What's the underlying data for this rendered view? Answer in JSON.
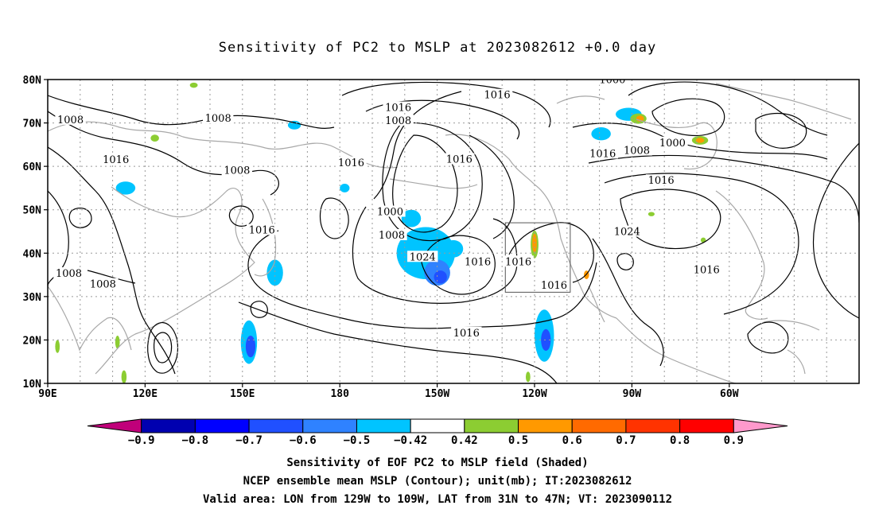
{
  "title": "Sensitivity of PC2 to MSLP at 2023082612 +0.0 day",
  "map": {
    "lat_labels": [
      "80N",
      "70N",
      "60N",
      "50N",
      "40N",
      "30N",
      "20N",
      "10N"
    ],
    "lon_labels": [
      "90E",
      "120E",
      "150E",
      "180",
      "150W",
      "120W",
      "90W",
      "60W"
    ],
    "valid_area_box": {
      "lon": [
        "129W",
        "109W"
      ],
      "lat": [
        "31N",
        "47N"
      ]
    },
    "contour_labels": [
      {
        "text": "1016",
        "lon": -131.5,
        "lat": 76.2
      },
      {
        "text": "1000",
        "lon": -96,
        "lat": 79.7
      },
      {
        "text": "1016",
        "lon": -162,
        "lat": 73.3
      },
      {
        "text": "1008",
        "lon": -162,
        "lat": 70.3
      },
      {
        "text": "1008",
        "lon": 97,
        "lat": 70.5
      },
      {
        "text": "1008",
        "lon": 142.5,
        "lat": 70.8
      },
      {
        "text": "1016",
        "lon": -99,
        "lat": 62.7
      },
      {
        "text": "1016",
        "lon": 111,
        "lat": 61.3
      },
      {
        "text": "1016",
        "lon": -143.2,
        "lat": 61.4
      },
      {
        "text": "1016",
        "lon": -176.5,
        "lat": 60.6
      },
      {
        "text": "1008",
        "lon": 148.3,
        "lat": 58.8
      },
      {
        "text": "1008",
        "lon": -88.5,
        "lat": 63.4
      },
      {
        "text": "1000",
        "lon": -77.5,
        "lat": 65.2
      },
      {
        "text": "1016",
        "lon": -81,
        "lat": 56.5
      },
      {
        "text": "1000",
        "lon": -164.5,
        "lat": 49.3
      },
      {
        "text": "1008",
        "lon": -164,
        "lat": 43.9
      },
      {
        "text": "1016",
        "lon": 156,
        "lat": 45.1
      },
      {
        "text": "1024",
        "lon": -91.5,
        "lat": 44.7
      },
      {
        "text": "1024",
        "lon": -154.5,
        "lat": 38.9
      },
      {
        "text": "1016",
        "lon": -137.5,
        "lat": 37.8
      },
      {
        "text": "1016",
        "lon": -125,
        "lat": 37.8
      },
      {
        "text": "1016",
        "lon": -114,
        "lat": 32.4
      },
      {
        "text": "1016",
        "lon": -67,
        "lat": 35.9
      },
      {
        "text": "1008",
        "lon": 96.5,
        "lat": 35.1
      },
      {
        "text": "1008",
        "lon": 107,
        "lat": 32.6
      },
      {
        "text": "1016",
        "lon": -141,
        "lat": 21.4
      }
    ],
    "shaded_regions": [
      {
        "value": -0.5,
        "lon": -153.5,
        "lat": 40,
        "rx": 9,
        "ry": 6
      },
      {
        "value": -0.6,
        "lon": -150,
        "lat": 35.5,
        "rx": 4,
        "ry": 3
      },
      {
        "value": -0.7,
        "lon": -149,
        "lat": 34.5,
        "rx": 2,
        "ry": 1.5
      },
      {
        "value": -0.5,
        "lon": -145,
        "lat": 41,
        "rx": 3,
        "ry": 2
      },
      {
        "value": -0.5,
        "lon": -158,
        "lat": 48,
        "rx": 3,
        "ry": 2
      },
      {
        "value": -0.5,
        "lon": 160,
        "lat": 35.5,
        "rx": 2.5,
        "ry": 3
      },
      {
        "value": -0.5,
        "lon": 152,
        "lat": 19.5,
        "rx": 2.5,
        "ry": 5
      },
      {
        "value": -0.7,
        "lon": 152.5,
        "lat": 18.5,
        "rx": 1.5,
        "ry": 2.5
      },
      {
        "value": -0.5,
        "lon": -117,
        "lat": 21,
        "rx": 3,
        "ry": 6
      },
      {
        "value": -0.7,
        "lon": -116.5,
        "lat": 20,
        "rx": 1.5,
        "ry": 2.5
      },
      {
        "value": -0.5,
        "lon": 114,
        "lat": 55,
        "rx": 3,
        "ry": 1.5
      },
      {
        "value": -0.5,
        "lon": 166,
        "lat": 69.5,
        "rx": 2,
        "ry": 1
      },
      {
        "value": -0.5,
        "lon": -178.5,
        "lat": 55,
        "rx": 1.5,
        "ry": 1
      },
      {
        "value": -0.5,
        "lon": -99.5,
        "lat": 67.5,
        "rx": 3,
        "ry": 1.5
      },
      {
        "value": -0.5,
        "lon": -91,
        "lat": 72,
        "rx": 4,
        "ry": 1.5
      },
      {
        "value": 0.5,
        "lon": -88,
        "lat": 71,
        "rx": 2.5,
        "ry": 1.2
      },
      {
        "value": 0.6,
        "lon": -87.5,
        "lat": 71,
        "rx": 1.2,
        "ry": 0.7
      },
      {
        "value": 0.5,
        "lon": -120,
        "lat": 42,
        "rx": 1.2,
        "ry": 3.2
      },
      {
        "value": 0.6,
        "lon": -120,
        "lat": 42.3,
        "rx": 0.7,
        "ry": 2.2
      },
      {
        "value": 0.6,
        "lon": -104,
        "lat": 35,
        "rx": 0.8,
        "ry": 1
      },
      {
        "value": 0.5,
        "lon": -69,
        "lat": 66,
        "rx": 2.5,
        "ry": 1
      },
      {
        "value": 0.6,
        "lon": -69,
        "lat": 66,
        "rx": 1.3,
        "ry": 0.6
      },
      {
        "value": 0.5,
        "lon": 135,
        "lat": 78.7,
        "rx": 1.2,
        "ry": 0.6
      },
      {
        "value": 0.5,
        "lon": 123,
        "lat": 66.5,
        "rx": 1.3,
        "ry": 0.8
      },
      {
        "value": 0.5,
        "lon": 93,
        "lat": 18.5,
        "rx": 0.7,
        "ry": 1.5
      },
      {
        "value": 0.5,
        "lon": 111.5,
        "lat": 19.5,
        "rx": 0.7,
        "ry": 1.5
      },
      {
        "value": 0.5,
        "lon": 113.5,
        "lat": 11.5,
        "rx": 0.8,
        "ry": 1.5
      },
      {
        "value": 0.5,
        "lon": -122,
        "lat": 11.5,
        "rx": 0.7,
        "ry": 1.2
      },
      {
        "value": 0.5,
        "lon": -68,
        "lat": 43,
        "rx": 0.8,
        "ry": 0.6
      },
      {
        "value": 0.5,
        "lon": -84,
        "lat": 49,
        "rx": 1,
        "ry": 0.5
      }
    ]
  },
  "colorbar": {
    "labels": [
      "−0.9",
      "−0.8",
      "−0.7",
      "−0.6",
      "−0.5",
      "−0.42",
      "0.42",
      "0.5",
      "0.6",
      "0.7",
      "0.8",
      "0.9"
    ],
    "colors": [
      "#c0007a",
      "#0000b0",
      "#0000ff",
      "#2050ff",
      "#2f82ff",
      "#00c4ff",
      "#ffffff",
      "#8ccd32",
      "#ff9900",
      "#ff6a00",
      "#ff3300",
      "#ff0000",
      "#ff99cc"
    ],
    "level_values": [
      -1.0,
      -0.85,
      -0.75,
      -0.65,
      -0.55,
      -0.46,
      0,
      0.46,
      0.55,
      0.65,
      0.75,
      0.85,
      1.0
    ]
  },
  "captions": [
    "Sensitivity of EOF PC2 to MSLP field (Shaded)",
    "NCEP ensemble mean MSLP (Contour); unit(mb); IT:2023082612",
    "Valid area: LON from 129W to 109W, LAT from 31N to 47N; VT: 2023090112"
  ],
  "colors": {
    "contour": "#000000",
    "coastline": "#a8a8a8",
    "grid": "#9a9a9a"
  }
}
